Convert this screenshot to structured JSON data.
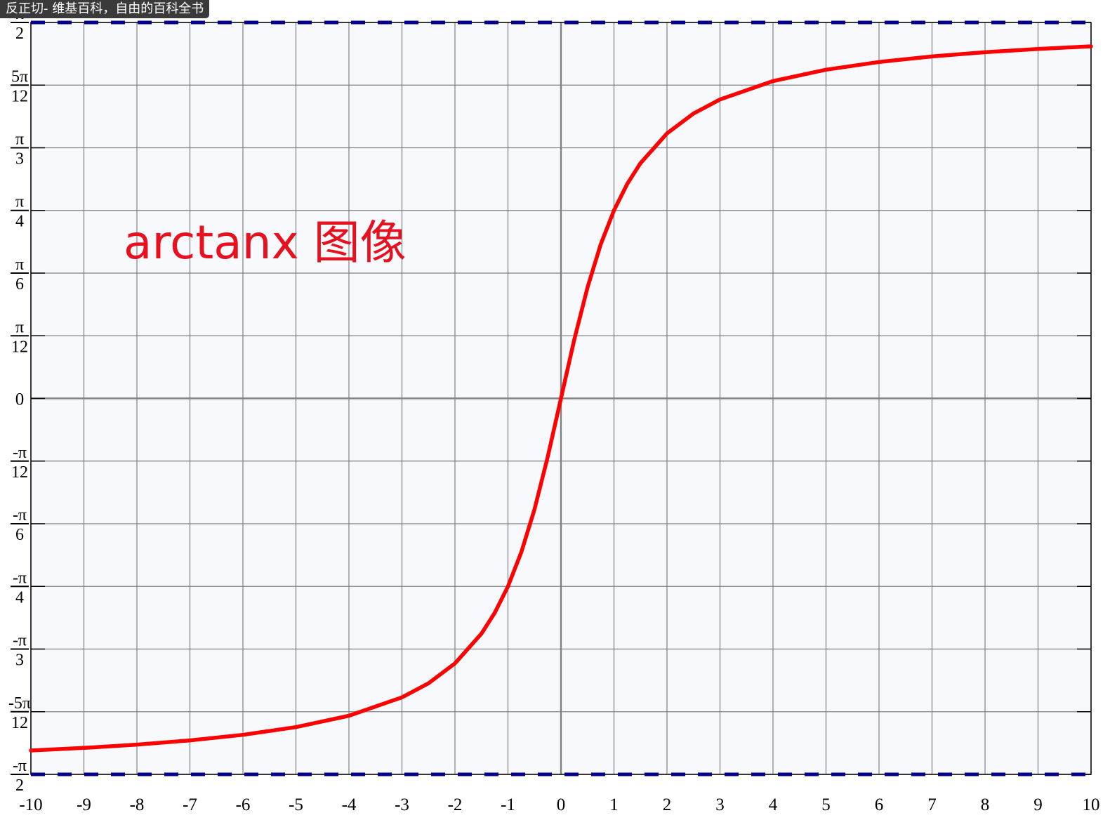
{
  "window": {
    "tab_title": "反正切- 维基百科，自由的百科全书"
  },
  "colors": {
    "curve": "#ff0000",
    "asymptote": "#00008b",
    "background": "#f7f9fc",
    "grid": "#808080",
    "annotation": "#e8101e"
  },
  "chart_data": {
    "type": "line",
    "function": "arctan(x)",
    "annotation": "arctanx 图像",
    "xlim": [
      -10,
      10
    ],
    "ylim": [
      -1.5707963,
      1.5707963
    ],
    "x_ticks": [
      -10,
      -9,
      -8,
      -7,
      -6,
      -5,
      -4,
      -3,
      -2,
      -1,
      0,
      1,
      2,
      3,
      4,
      5,
      6,
      7,
      8,
      9,
      10
    ],
    "x_tick_labels": [
      "-10",
      "-9",
      "-8",
      "-7",
      "-6",
      "-5",
      "-4",
      "-3",
      "-2",
      "-1",
      "0",
      "1",
      "2",
      "3",
      "4",
      "5",
      "6",
      "7",
      "8",
      "9",
      "10"
    ],
    "y_ticks": [
      {
        "value": 1.5707963,
        "num": "π",
        "den": "2"
      },
      {
        "value": 1.3089969,
        "num": "5π",
        "den": "12"
      },
      {
        "value": 1.0471976,
        "num": "π",
        "den": "3"
      },
      {
        "value": 0.7853982,
        "num": "π",
        "den": "4"
      },
      {
        "value": 0.5235988,
        "num": "π",
        "den": "6"
      },
      {
        "value": 0.2617994,
        "num": "π",
        "den": "12"
      },
      {
        "value": 0,
        "text": "0"
      },
      {
        "value": -0.2617994,
        "num": "-π",
        "den": "12"
      },
      {
        "value": -0.5235988,
        "num": "-π",
        "den": "6"
      },
      {
        "value": -0.7853982,
        "num": "-π",
        "den": "4"
      },
      {
        "value": -1.0471976,
        "num": "-π",
        "den": "3"
      },
      {
        "value": -1.3089969,
        "num": "-5π",
        "den": "12"
      },
      {
        "value": -1.5707963,
        "num": "-π",
        "den": "2"
      }
    ],
    "asymptotes": [
      1.5707963,
      -1.5707963
    ],
    "series": [
      {
        "x": [
          -10,
          -9,
          -8,
          -7,
          -6,
          -5,
          -4,
          -3,
          -2.5,
          -2,
          -1.5,
          -1.25,
          -1,
          -0.75,
          -0.5,
          -0.25,
          0,
          0.25,
          0.5,
          0.75,
          1,
          1.25,
          1.5,
          2,
          2.5,
          3,
          4,
          5,
          6,
          7,
          8,
          9,
          10
        ],
        "y": [
          -1.4711,
          -1.4601,
          -1.4464,
          -1.4289,
          -1.4056,
          -1.3734,
          -1.3258,
          -1.249,
          -1.1903,
          -1.1071,
          -0.9828,
          -0.8961,
          -0.7854,
          -0.6435,
          -0.4636,
          -0.245,
          0,
          0.245,
          0.4636,
          0.6435,
          0.7854,
          0.8961,
          0.9828,
          1.1071,
          1.1903,
          1.249,
          1.3258,
          1.3734,
          1.4056,
          1.4289,
          1.4464,
          1.4601,
          1.4711
        ]
      }
    ],
    "grid": true
  }
}
